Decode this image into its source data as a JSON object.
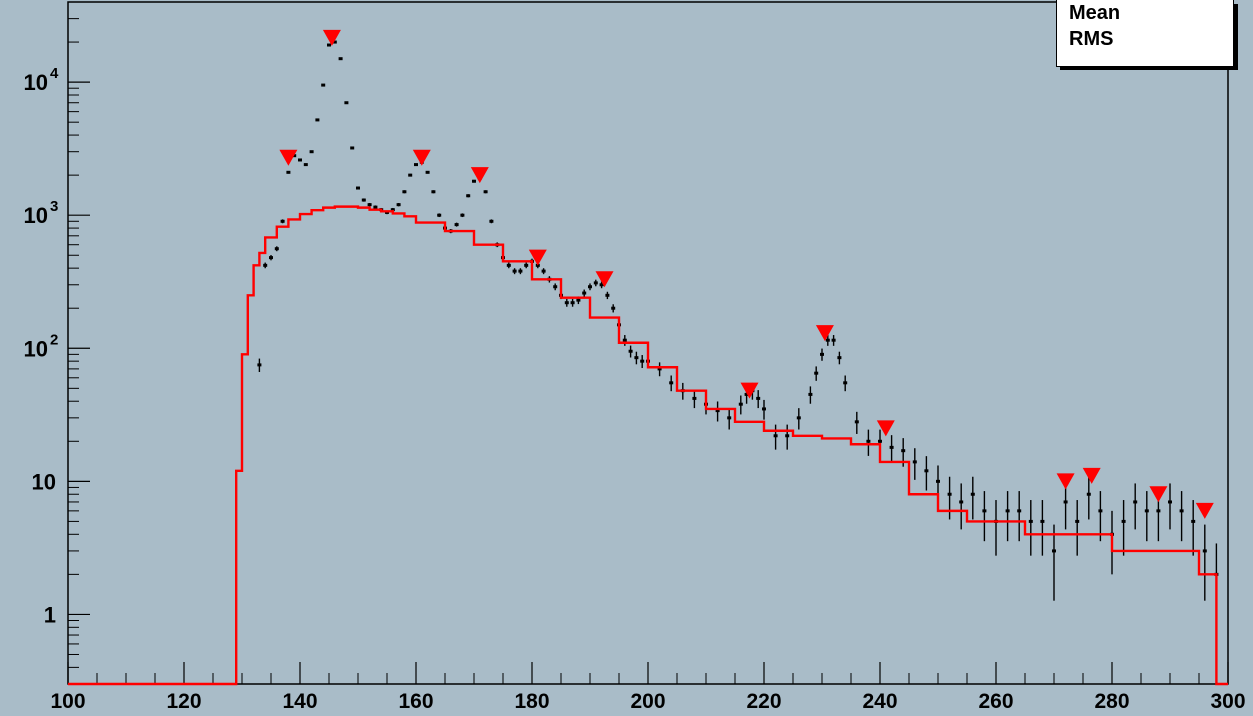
{
  "chart_data": {
    "type": "scatter",
    "title": "",
    "xlabel": "",
    "ylabel": "",
    "xlim": [
      100,
      300
    ],
    "ylim": [
      0.3,
      40000
    ],
    "yscale": "log",
    "grid": false,
    "x_ticks": [
      "100",
      "120",
      "140",
      "160",
      "180",
      "200",
      "220",
      "240",
      "260",
      "280",
      "300"
    ],
    "y_ticks": [
      {
        "value": 1,
        "base": "1",
        "exp": ""
      },
      {
        "value": 10,
        "base": "10",
        "exp": ""
      },
      {
        "value": 100,
        "base": "10",
        "exp": "2"
      },
      {
        "value": 1000,
        "base": "10",
        "exp": "3"
      },
      {
        "value": 10000,
        "base": "10",
        "exp": "4"
      }
    ],
    "stats": [
      "Mean",
      "RMS"
    ],
    "colors": {
      "background": "#a9bcc8",
      "data": "#000000",
      "background_fit": "#ff0000",
      "markers": "#ff0000"
    },
    "series": [
      {
        "kind": "data-points",
        "x": [
          133,
          134,
          135,
          136,
          137,
          138,
          139,
          140,
          141,
          142,
          143,
          144,
          145,
          146,
          147,
          148,
          149,
          150,
          151,
          152,
          153,
          154,
          155,
          156,
          157,
          158,
          159,
          160,
          161,
          162,
          163,
          164,
          165,
          166,
          167,
          168,
          169,
          170,
          171,
          172,
          173,
          174,
          175,
          176,
          177,
          178,
          179,
          180,
          181,
          182,
          183,
          184,
          185,
          186,
          187,
          188,
          189,
          190,
          191,
          192,
          193,
          194,
          195,
          196,
          197,
          198,
          199,
          200,
          202,
          204,
          206,
          208,
          210,
          212,
          214,
          216,
          217,
          218,
          219,
          220,
          222,
          224,
          226,
          228,
          229,
          230,
          231,
          232,
          233,
          234,
          236,
          238,
          240,
          242,
          244,
          246,
          248,
          250,
          252,
          254,
          256,
          258,
          260,
          262,
          264,
          266,
          268,
          270,
          272,
          274,
          276,
          278,
          280,
          282,
          284,
          286,
          288,
          290,
          292,
          294,
          296,
          298
        ],
        "y": [
          75,
          420,
          480,
          560,
          900,
          2100,
          2800,
          2600,
          2400,
          3000,
          5200,
          9500,
          19000,
          20000,
          15000,
          7000,
          3200,
          1600,
          1300,
          1200,
          1150,
          1100,
          1050,
          1100,
          1200,
          1500,
          2000,
          2400,
          2500,
          2100,
          1500,
          1000,
          800,
          760,
          850,
          1000,
          1400,
          1800,
          1900,
          1500,
          900,
          600,
          480,
          420,
          380,
          380,
          420,
          450,
          420,
          380,
          330,
          290,
          250,
          220,
          220,
          230,
          260,
          290,
          310,
          300,
          250,
          200,
          150,
          115,
          95,
          85,
          80,
          80,
          70,
          55,
          48,
          42,
          38,
          34,
          30,
          38,
          45,
          48,
          42,
          35,
          22,
          22,
          30,
          45,
          65,
          90,
          115,
          115,
          85,
          55,
          28,
          20,
          20,
          18,
          17,
          14,
          12,
          10,
          8,
          7,
          8,
          6,
          5,
          6,
          6,
          5,
          5,
          3,
          7,
          5,
          8,
          6,
          4,
          5,
          7,
          6,
          6,
          7,
          6,
          5,
          3,
          2
        ]
      },
      {
        "kind": "background-fit",
        "x": [
          129,
          130,
          131,
          132,
          133,
          134,
          136,
          138,
          140,
          142,
          144,
          146,
          148,
          150,
          152,
          154,
          156,
          158,
          160,
          165,
          170,
          175,
          180,
          185,
          190,
          195,
          200,
          205,
          210,
          215,
          220,
          225,
          230,
          235,
          240,
          245,
          250,
          255,
          260,
          265,
          270,
          275,
          280,
          285,
          290,
          295,
          298,
          300
        ],
        "y": [
          0.3,
          12,
          90,
          250,
          420,
          520,
          680,
          820,
          930,
          1020,
          1090,
          1140,
          1160,
          1160,
          1140,
          1100,
          1070,
          1030,
          980,
          880,
          760,
          600,
          450,
          330,
          240,
          170,
          110,
          72,
          48,
          35,
          28,
          24,
          22,
          21,
          19,
          14,
          8,
          6,
          5,
          5,
          4,
          4,
          4,
          3,
          3,
          3,
          2,
          0.3
        ]
      },
      {
        "kind": "peak-markers",
        "x": [
          138,
          145.5,
          161,
          171,
          181,
          192.5,
          217.5,
          230.5,
          241,
          272,
          276.5,
          288,
          296
        ],
        "y": [
          2700,
          21500,
          2700,
          2000,
          480,
          330,
          48,
          130,
          25,
          10,
          11,
          8,
          6
        ]
      }
    ]
  }
}
